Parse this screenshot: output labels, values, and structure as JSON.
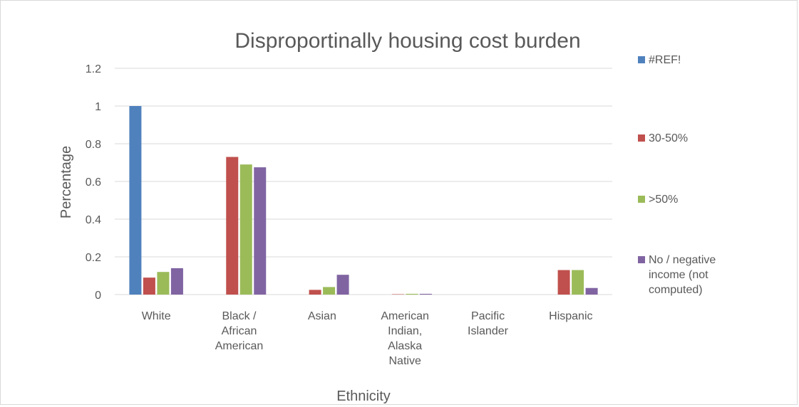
{
  "chart_data": {
    "type": "bar",
    "title": "Disproportinally housing cost burden",
    "xlabel": "Ethnicity",
    "ylabel": "Percentage",
    "ylim": [
      0,
      1.2
    ],
    "yticks": [
      "0",
      "0.2",
      "0.4",
      "0.6",
      "0.8",
      "1",
      "1.2"
    ],
    "grid": true,
    "legend_position": "right",
    "categories": [
      [
        "White"
      ],
      [
        "Black /",
        "African",
        "American"
      ],
      [
        "Asian"
      ],
      [
        "American",
        "Indian,",
        "Alaska",
        "Native"
      ],
      [
        "Pacific",
        "Islander"
      ],
      [
        "Hispanic"
      ]
    ],
    "series": [
      {
        "name": "#REF!",
        "color": "#4f81bd",
        "values": [
          1.0,
          0,
          0,
          0,
          0,
          0
        ]
      },
      {
        "name": "30-50%",
        "color": "#c0504d",
        "values": [
          0.09,
          0.73,
          0.025,
          0.002,
          0,
          0.13
        ]
      },
      {
        "name": ">50%",
        "color": "#9bbb59",
        "values": [
          0.12,
          0.69,
          0.04,
          0.004,
          0,
          0.13
        ]
      },
      {
        "name": "No / negative income (not computed)",
        "legend_lines": [
          "No / negative",
          "income (not",
          "computed)"
        ],
        "color": "#8064a2",
        "values": [
          0.14,
          0.675,
          0.105,
          0.004,
          0,
          0.035
        ]
      }
    ]
  }
}
